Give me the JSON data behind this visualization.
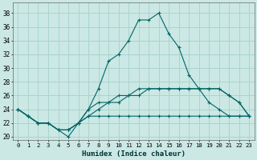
{
  "xlabel": "Humidex (Indice chaleur)",
  "ylabel": "",
  "background_color": "#cbe8e4",
  "grid_color": "#aad4ce",
  "line_color": "#006666",
  "xlim": [
    -0.5,
    23.5
  ],
  "ylim": [
    19.5,
    39.5
  ],
  "yticks": [
    20,
    22,
    24,
    26,
    28,
    30,
    32,
    34,
    36,
    38
  ],
  "xticks": [
    0,
    1,
    2,
    3,
    4,
    5,
    6,
    7,
    8,
    9,
    10,
    11,
    12,
    13,
    14,
    15,
    16,
    17,
    18,
    19,
    20,
    21,
    22,
    23
  ],
  "series": [
    {
      "x": [
        0,
        1,
        2,
        3,
        4,
        5,
        6,
        7,
        8,
        9,
        10,
        11,
        12,
        13,
        14,
        15,
        16,
        17,
        18,
        19,
        20,
        21,
        22,
        23
      ],
      "y": [
        24,
        23,
        22,
        22,
        21,
        20,
        22,
        24,
        27,
        31,
        32,
        34,
        37,
        37,
        38,
        35,
        33,
        29,
        27,
        25,
        24,
        23,
        23,
        23
      ]
    },
    {
      "x": [
        0,
        1,
        2,
        3,
        4,
        5,
        6,
        7,
        8,
        9,
        10,
        11,
        12,
        13,
        14,
        15,
        16,
        17,
        18,
        19,
        20,
        21,
        22,
        23
      ],
      "y": [
        24,
        23,
        22,
        22,
        21,
        21,
        22,
        23,
        24,
        25,
        25,
        26,
        26,
        27,
        27,
        27,
        27,
        27,
        27,
        27,
        27,
        26,
        25,
        23
      ]
    },
    {
      "x": [
        0,
        1,
        2,
        3,
        4,
        5,
        6,
        7,
        8,
        9,
        10,
        11,
        12,
        13,
        14,
        15,
        16,
        17,
        18,
        19,
        20,
        21,
        22,
        23
      ],
      "y": [
        24,
        23,
        22,
        22,
        21,
        21,
        22,
        23,
        23,
        23,
        23,
        23,
        23,
        23,
        23,
        23,
        23,
        23,
        23,
        23,
        23,
        23,
        23,
        23
      ]
    },
    {
      "x": [
        0,
        1,
        2,
        3,
        4,
        5,
        6,
        7,
        8,
        9,
        10,
        11,
        12,
        13,
        14,
        15,
        16,
        17,
        18,
        19,
        20,
        21,
        22,
        23
      ],
      "y": [
        24,
        23,
        22,
        22,
        21,
        21,
        22,
        24,
        25,
        25,
        26,
        26,
        27,
        27,
        27,
        27,
        27,
        27,
        27,
        27,
        27,
        26,
        25,
        23
      ]
    }
  ],
  "marker": "+",
  "font_size_x": 5.2,
  "font_size_y": 5.5,
  "xlabel_fontsize": 6.5
}
